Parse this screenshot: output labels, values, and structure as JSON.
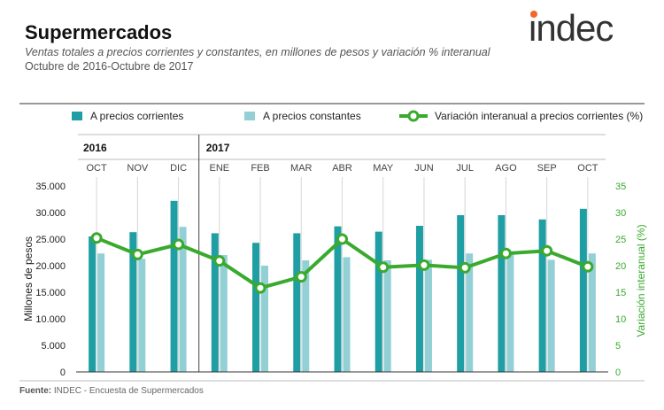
{
  "header": {
    "title": "Supermercados",
    "subtitle": "Ventas totales a precios corrientes y constantes, en millones de pesos y variación % interanual",
    "period": "Octubre de 2016-Octubre de 2017"
  },
  "logo": {
    "text": "indec",
    "color": "#333333",
    "dot_color": "#f1662a"
  },
  "source": {
    "label": "Fuente:",
    "text": "INDEC - Encuesta de Supermercados"
  },
  "colors": {
    "corrientes": "#1f9ea3",
    "constantes": "#93d0d6",
    "variacion": "#3aaa2e",
    "right_axis": "#3aaa2e"
  },
  "chart_data": {
    "type": "bar",
    "years": [
      {
        "label": "2016",
        "months": [
          "OCT",
          "NOV",
          "DIC"
        ]
      },
      {
        "label": "2017",
        "months": [
          "ENE",
          "FEB",
          "MAR",
          "ABR",
          "MAY",
          "JUN",
          "JUL",
          "AGO",
          "SEP",
          "OCT"
        ]
      }
    ],
    "categories": [
      "OCT",
      "NOV",
      "DIC",
      "ENE",
      "FEB",
      "MAR",
      "ABR",
      "MAY",
      "JUN",
      "JUL",
      "AGO",
      "SEP",
      "OCT"
    ],
    "series": [
      {
        "name": "A precios corrientes",
        "type": "bar",
        "axis": "left",
        "values": [
          25500,
          26300,
          32200,
          26100,
          24300,
          26100,
          27400,
          26400,
          27500,
          29500,
          29500,
          28700,
          30700
        ]
      },
      {
        "name": "A precios constantes",
        "type": "bar",
        "axis": "left",
        "values": [
          22300,
          21300,
          27300,
          22000,
          20000,
          21000,
          21600,
          21000,
          21100,
          22300,
          22300,
          21100,
          22300
        ]
      },
      {
        "name": "Variación interanual a precios corrientes (%)",
        "type": "line",
        "axis": "right",
        "values": [
          25.2,
          22.1,
          24.0,
          20.9,
          15.8,
          17.9,
          25.0,
          19.7,
          20.1,
          19.6,
          22.3,
          22.8,
          19.8
        ]
      }
    ],
    "ylabel": "Millones de pesos",
    "ylabel_right": "Variación interanual (%)",
    "ylim": [
      0,
      35000
    ],
    "yticks": [
      "0",
      "5.000",
      "10.000",
      "15.000",
      "20.000",
      "25.000",
      "30.000",
      "35.000"
    ],
    "ylim_right": [
      0,
      35
    ],
    "yticks_right": [
      "0",
      "5",
      "10",
      "15",
      "20",
      "25",
      "30",
      "35"
    ],
    "legend_position": "top",
    "grid": "vertical"
  }
}
